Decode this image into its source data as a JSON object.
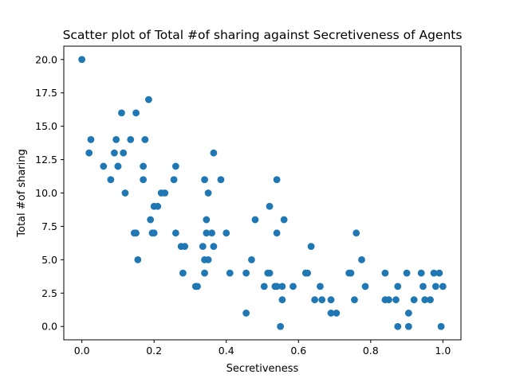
{
  "chart_data": {
    "type": "scatter",
    "title": "Scatter plot of Total #of sharing against Secretiveness of Agents",
    "xlabel": "Secretiveness",
    "ylabel": "Total #of sharing",
    "xlim": [
      -0.05,
      1.05
    ],
    "ylim": [
      -1.0,
      21.0
    ],
    "xticks": [
      "0.0",
      "0.2",
      "0.4",
      "0.6",
      "0.8",
      "1.0"
    ],
    "yticks": [
      "0.0",
      "2.5",
      "5.0",
      "7.5",
      "10.0",
      "12.5",
      "15.0",
      "17.5",
      "20.0"
    ],
    "grid": false,
    "legend": false,
    "marker_color": "#1f77b4",
    "points": [
      [
        0.0,
        20
      ],
      [
        0.02,
        13
      ],
      [
        0.025,
        14
      ],
      [
        0.06,
        12
      ],
      [
        0.08,
        11
      ],
      [
        0.09,
        13
      ],
      [
        0.095,
        14
      ],
      [
        0.1,
        12
      ],
      [
        0.1,
        12
      ],
      [
        0.11,
        16
      ],
      [
        0.115,
        13
      ],
      [
        0.12,
        10
      ],
      [
        0.135,
        14
      ],
      [
        0.145,
        7
      ],
      [
        0.15,
        7
      ],
      [
        0.15,
        16
      ],
      [
        0.155,
        5
      ],
      [
        0.17,
        12
      ],
      [
        0.17,
        11
      ],
      [
        0.175,
        14
      ],
      [
        0.185,
        17
      ],
      [
        0.19,
        8
      ],
      [
        0.195,
        7
      ],
      [
        0.2,
        9
      ],
      [
        0.2,
        7
      ],
      [
        0.21,
        9
      ],
      [
        0.22,
        10
      ],
      [
        0.23,
        10
      ],
      [
        0.255,
        11
      ],
      [
        0.26,
        12
      ],
      [
        0.26,
        7
      ],
      [
        0.275,
        6
      ],
      [
        0.28,
        4
      ],
      [
        0.285,
        6
      ],
      [
        0.315,
        3
      ],
      [
        0.32,
        3
      ],
      [
        0.335,
        6
      ],
      [
        0.34,
        5
      ],
      [
        0.34,
        4
      ],
      [
        0.34,
        11
      ],
      [
        0.345,
        7
      ],
      [
        0.345,
        8
      ],
      [
        0.35,
        5
      ],
      [
        0.35,
        10
      ],
      [
        0.36,
        7
      ],
      [
        0.365,
        6
      ],
      [
        0.365,
        13
      ],
      [
        0.385,
        11
      ],
      [
        0.4,
        7
      ],
      [
        0.41,
        4
      ],
      [
        0.455,
        1
      ],
      [
        0.455,
        4
      ],
      [
        0.47,
        5
      ],
      [
        0.48,
        8
      ],
      [
        0.505,
        3
      ],
      [
        0.515,
        4
      ],
      [
        0.52,
        9
      ],
      [
        0.52,
        4
      ],
      [
        0.535,
        3
      ],
      [
        0.54,
        3
      ],
      [
        0.54,
        7
      ],
      [
        0.54,
        11
      ],
      [
        0.55,
        0
      ],
      [
        0.555,
        3
      ],
      [
        0.555,
        2
      ],
      [
        0.56,
        8
      ],
      [
        0.585,
        3
      ],
      [
        0.62,
        4
      ],
      [
        0.625,
        4
      ],
      [
        0.635,
        6
      ],
      [
        0.645,
        2
      ],
      [
        0.66,
        3
      ],
      [
        0.665,
        2
      ],
      [
        0.69,
        1
      ],
      [
        0.69,
        2
      ],
      [
        0.705,
        1
      ],
      [
        0.74,
        4
      ],
      [
        0.745,
        4
      ],
      [
        0.755,
        2
      ],
      [
        0.76,
        7
      ],
      [
        0.775,
        5
      ],
      [
        0.785,
        3
      ],
      [
        0.84,
        2
      ],
      [
        0.84,
        4
      ],
      [
        0.85,
        2
      ],
      [
        0.87,
        2
      ],
      [
        0.875,
        0
      ],
      [
        0.875,
        3
      ],
      [
        0.9,
        4
      ],
      [
        0.905,
        1
      ],
      [
        0.905,
        0
      ],
      [
        0.92,
        2
      ],
      [
        0.94,
        4
      ],
      [
        0.945,
        3
      ],
      [
        0.95,
        2
      ],
      [
        0.965,
        2
      ],
      [
        0.975,
        4
      ],
      [
        0.98,
        3
      ],
      [
        0.99,
        4
      ],
      [
        0.995,
        0
      ],
      [
        1.0,
        3
      ]
    ]
  }
}
